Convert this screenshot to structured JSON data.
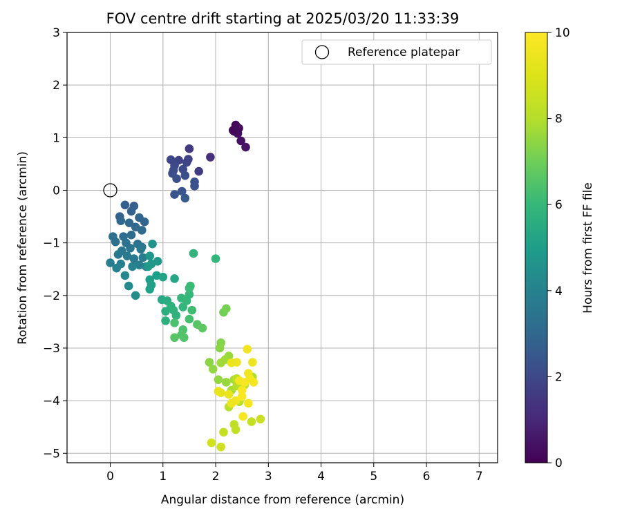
{
  "chart_data": {
    "type": "scatter",
    "title": "FOV centre drift starting at 2025/03/20 11:33:39",
    "xlabel": "Angular distance from reference (arcmin)",
    "ylabel": "Rotation from reference (arcmin)",
    "xlim": [
      -0.82,
      7.35
    ],
    "ylim": [
      -5.18,
      3.0
    ],
    "xticks": [
      "0",
      "1",
      "2",
      "3",
      "4",
      "5",
      "6",
      "7"
    ],
    "yticks": [
      "3",
      "2",
      "1",
      "0",
      "−1",
      "−2",
      "−3",
      "−4",
      "−5"
    ],
    "grid": true,
    "legend": {
      "position": "top-right",
      "entries": [
        "Reference platepar"
      ]
    },
    "reference_point": {
      "x": 0,
      "y": 0
    },
    "colorbar": {
      "label": "Hours from first FF file",
      "min": 0,
      "max": 10,
      "ticks": [
        "0",
        "2",
        "4",
        "6",
        "8",
        "10"
      ],
      "colormap": "viridis"
    },
    "points": [
      {
        "x": 2.38,
        "y": 1.24,
        "h": 0.1
      },
      {
        "x": 2.35,
        "y": 1.12,
        "h": 0.2
      },
      {
        "x": 2.42,
        "y": 1.08,
        "h": 0.3
      },
      {
        "x": 2.48,
        "y": 0.94,
        "h": 0.4
      },
      {
        "x": 2.57,
        "y": 0.82,
        "h": 0.5
      },
      {
        "x": 2.33,
        "y": 1.14,
        "h": 0.15
      },
      {
        "x": 2.44,
        "y": 1.18,
        "h": 0.25
      },
      {
        "x": 1.9,
        "y": 0.63,
        "h": 1.2
      },
      {
        "x": 1.5,
        "y": 0.79,
        "h": 1.5
      },
      {
        "x": 1.68,
        "y": 0.36,
        "h": 1.6
      },
      {
        "x": 1.3,
        "y": 0.57,
        "h": 1.8
      },
      {
        "x": 1.45,
        "y": 0.53,
        "h": 1.9
      },
      {
        "x": 1.38,
        "y": 0.4,
        "h": 2.0
      },
      {
        "x": 1.22,
        "y": 0.47,
        "h": 2.0
      },
      {
        "x": 1.18,
        "y": 0.32,
        "h": 2.1
      },
      {
        "x": 1.26,
        "y": 0.22,
        "h": 2.2
      },
      {
        "x": 1.42,
        "y": 0.28,
        "h": 2.2
      },
      {
        "x": 1.6,
        "y": 0.16,
        "h": 2.3
      },
      {
        "x": 1.6,
        "y": 0.08,
        "h": 2.3
      },
      {
        "x": 1.36,
        "y": -0.02,
        "h": 2.4
      },
      {
        "x": 1.22,
        "y": -0.08,
        "h": 2.4
      },
      {
        "x": 1.42,
        "y": -0.15,
        "h": 2.5
      },
      {
        "x": 1.15,
        "y": 0.58,
        "h": 1.9
      },
      {
        "x": 1.48,
        "y": 0.59,
        "h": 1.8
      },
      {
        "x": 1.2,
        "y": 0.38,
        "h": 2.1
      },
      {
        "x": 0.28,
        "y": -0.28,
        "h": 2.7
      },
      {
        "x": 0.45,
        "y": -0.3,
        "h": 2.7
      },
      {
        "x": 0.4,
        "y": -0.4,
        "h": 2.8
      },
      {
        "x": 0.18,
        "y": -0.5,
        "h": 2.8
      },
      {
        "x": 0.55,
        "y": -0.52,
        "h": 2.9
      },
      {
        "x": 0.65,
        "y": -0.6,
        "h": 2.9
      },
      {
        "x": 0.2,
        "y": -0.58,
        "h": 3.0
      },
      {
        "x": 0.36,
        "y": -0.62,
        "h": 3.0
      },
      {
        "x": 0.48,
        "y": -0.7,
        "h": 3.1
      },
      {
        "x": 0.6,
        "y": -0.76,
        "h": 3.1
      },
      {
        "x": 0.4,
        "y": -0.85,
        "h": 3.2
      },
      {
        "x": 0.25,
        "y": -0.88,
        "h": 3.2
      },
      {
        "x": 0.05,
        "y": -0.88,
        "h": 3.3
      },
      {
        "x": 0.1,
        "y": -0.98,
        "h": 3.3
      },
      {
        "x": 0.3,
        "y": -1.0,
        "h": 3.4
      },
      {
        "x": 0.52,
        "y": -1.02,
        "h": 3.4
      },
      {
        "x": 0.6,
        "y": -1.08,
        "h": 3.5
      },
      {
        "x": 0.38,
        "y": -1.1,
        "h": 3.5
      },
      {
        "x": 0.22,
        "y": -1.15,
        "h": 3.6
      },
      {
        "x": 0.15,
        "y": -1.22,
        "h": 3.6
      },
      {
        "x": 0.32,
        "y": -1.25,
        "h": 3.7
      },
      {
        "x": 0.45,
        "y": -1.3,
        "h": 3.7
      },
      {
        "x": 0.62,
        "y": -1.28,
        "h": 3.8
      },
      {
        "x": 0.0,
        "y": -1.38,
        "h": 3.8
      },
      {
        "x": 0.2,
        "y": -1.4,
        "h": 3.9
      },
      {
        "x": 0.55,
        "y": -1.42,
        "h": 3.9
      },
      {
        "x": 0.68,
        "y": -1.45,
        "h": 4.0
      },
      {
        "x": 0.42,
        "y": -1.45,
        "h": 4.0
      },
      {
        "x": 0.28,
        "y": -1.62,
        "h": 4.2
      },
      {
        "x": 0.35,
        "y": -1.82,
        "h": 4.3
      },
      {
        "x": 0.48,
        "y": -2.0,
        "h": 4.4
      },
      {
        "x": 0.12,
        "y": -1.48,
        "h": 4.0
      },
      {
        "x": 0.58,
        "y": -1.12,
        "h": 3.6
      },
      {
        "x": 0.8,
        "y": -1.02,
        "h": 4.6
      },
      {
        "x": 0.75,
        "y": -1.25,
        "h": 4.7
      },
      {
        "x": 0.9,
        "y": -1.35,
        "h": 4.8
      },
      {
        "x": 0.78,
        "y": -1.4,
        "h": 4.8
      },
      {
        "x": 0.72,
        "y": -1.45,
        "h": 4.9
      },
      {
        "x": 0.88,
        "y": -1.62,
        "h": 5.0
      },
      {
        "x": 0.75,
        "y": -1.7,
        "h": 5.0
      },
      {
        "x": 0.78,
        "y": -1.8,
        "h": 5.1
      },
      {
        "x": 0.75,
        "y": -1.88,
        "h": 5.1
      },
      {
        "x": 1.0,
        "y": -1.65,
        "h": 5.2
      },
      {
        "x": 1.22,
        "y": -1.68,
        "h": 5.3
      },
      {
        "x": 0.98,
        "y": -2.08,
        "h": 5.4
      },
      {
        "x": 1.08,
        "y": -2.1,
        "h": 5.5
      },
      {
        "x": 1.05,
        "y": -2.3,
        "h": 5.6
      },
      {
        "x": 1.05,
        "y": -2.48,
        "h": 5.7
      },
      {
        "x": 1.15,
        "y": -2.2,
        "h": 5.7
      },
      {
        "x": 1.2,
        "y": -2.28,
        "h": 5.8
      },
      {
        "x": 1.25,
        "y": -2.38,
        "h": 5.8
      },
      {
        "x": 1.35,
        "y": -2.05,
        "h": 5.9
      },
      {
        "x": 1.38,
        "y": -2.22,
        "h": 5.9
      },
      {
        "x": 1.45,
        "y": -2.1,
        "h": 6.0
      },
      {
        "x": 1.5,
        "y": -1.98,
        "h": 6.0
      },
      {
        "x": 1.52,
        "y": -1.82,
        "h": 6.1
      },
      {
        "x": 1.55,
        "y": -2.28,
        "h": 6.2
      },
      {
        "x": 1.5,
        "y": -2.45,
        "h": 6.3
      },
      {
        "x": 1.22,
        "y": -2.52,
        "h": 6.4
      },
      {
        "x": 1.38,
        "y": -2.65,
        "h": 6.4
      },
      {
        "x": 1.35,
        "y": -2.75,
        "h": 6.5
      },
      {
        "x": 1.4,
        "y": -2.8,
        "h": 6.5
      },
      {
        "x": 1.22,
        "y": -2.8,
        "h": 6.6
      },
      {
        "x": 1.65,
        "y": -2.55,
        "h": 6.6
      },
      {
        "x": 1.75,
        "y": -2.62,
        "h": 6.7
      },
      {
        "x": 1.58,
        "y": -1.2,
        "h": 5.8
      },
      {
        "x": 2.0,
        "y": -1.3,
        "h": 5.9
      },
      {
        "x": 1.5,
        "y": -1.86,
        "h": 6.1
      },
      {
        "x": 2.15,
        "y": -2.32,
        "h": 7.0
      },
      {
        "x": 2.2,
        "y": -2.25,
        "h": 7.1
      },
      {
        "x": 2.1,
        "y": -2.9,
        "h": 7.3
      },
      {
        "x": 2.08,
        "y": -3.0,
        "h": 7.4
      },
      {
        "x": 1.88,
        "y": -3.27,
        "h": 7.4
      },
      {
        "x": 1.95,
        "y": -3.4,
        "h": 7.5
      },
      {
        "x": 2.05,
        "y": -3.6,
        "h": 7.5
      },
      {
        "x": 2.2,
        "y": -3.65,
        "h": 7.6
      },
      {
        "x": 2.25,
        "y": -3.15,
        "h": 7.6
      },
      {
        "x": 2.1,
        "y": -3.28,
        "h": 7.7
      },
      {
        "x": 2.18,
        "y": -3.22,
        "h": 7.7
      },
      {
        "x": 2.3,
        "y": -3.8,
        "h": 7.8
      },
      {
        "x": 2.35,
        "y": -3.6,
        "h": 7.8
      },
      {
        "x": 2.7,
        "y": -3.55,
        "h": 7.9
      },
      {
        "x": 2.4,
        "y": -3.72,
        "h": 8.0
      },
      {
        "x": 2.45,
        "y": -4.02,
        "h": 8.1
      },
      {
        "x": 2.25,
        "y": -4.12,
        "h": 8.1
      },
      {
        "x": 2.35,
        "y": -4.45,
        "h": 8.2
      },
      {
        "x": 2.38,
        "y": -4.55,
        "h": 8.3
      },
      {
        "x": 2.15,
        "y": -4.6,
        "h": 8.4
      },
      {
        "x": 2.68,
        "y": -4.4,
        "h": 8.4
      },
      {
        "x": 2.85,
        "y": -4.35,
        "h": 8.5
      },
      {
        "x": 2.1,
        "y": -4.88,
        "h": 8.6
      },
      {
        "x": 1.92,
        "y": -4.8,
        "h": 8.7
      },
      {
        "x": 2.4,
        "y": -3.58,
        "h": 8.2
      },
      {
        "x": 2.55,
        "y": -3.7,
        "h": 8.3
      },
      {
        "x": 2.6,
        "y": -3.02,
        "h": 9.6
      },
      {
        "x": 2.4,
        "y": -3.27,
        "h": 9.5
      },
      {
        "x": 2.3,
        "y": -3.28,
        "h": 9.4
      },
      {
        "x": 2.7,
        "y": -3.27,
        "h": 9.5
      },
      {
        "x": 2.62,
        "y": -3.48,
        "h": 9.6
      },
      {
        "x": 2.45,
        "y": -3.62,
        "h": 9.7
      },
      {
        "x": 2.55,
        "y": -3.65,
        "h": 9.8
      },
      {
        "x": 2.72,
        "y": -3.65,
        "h": 9.8
      },
      {
        "x": 2.65,
        "y": -3.58,
        "h": 9.7
      },
      {
        "x": 2.5,
        "y": -3.8,
        "h": 9.8
      },
      {
        "x": 2.1,
        "y": -3.85,
        "h": 9.3
      },
      {
        "x": 2.25,
        "y": -3.88,
        "h": 9.4
      },
      {
        "x": 2.38,
        "y": -4.0,
        "h": 9.6
      },
      {
        "x": 2.3,
        "y": -4.05,
        "h": 9.5
      },
      {
        "x": 2.62,
        "y": -4.05,
        "h": 9.7
      },
      {
        "x": 2.52,
        "y": -4.3,
        "h": 9.8
      },
      {
        "x": 2.05,
        "y": -3.82,
        "h": 9.3
      },
      {
        "x": 2.5,
        "y": -3.92,
        "h": 9.9
      }
    ]
  }
}
